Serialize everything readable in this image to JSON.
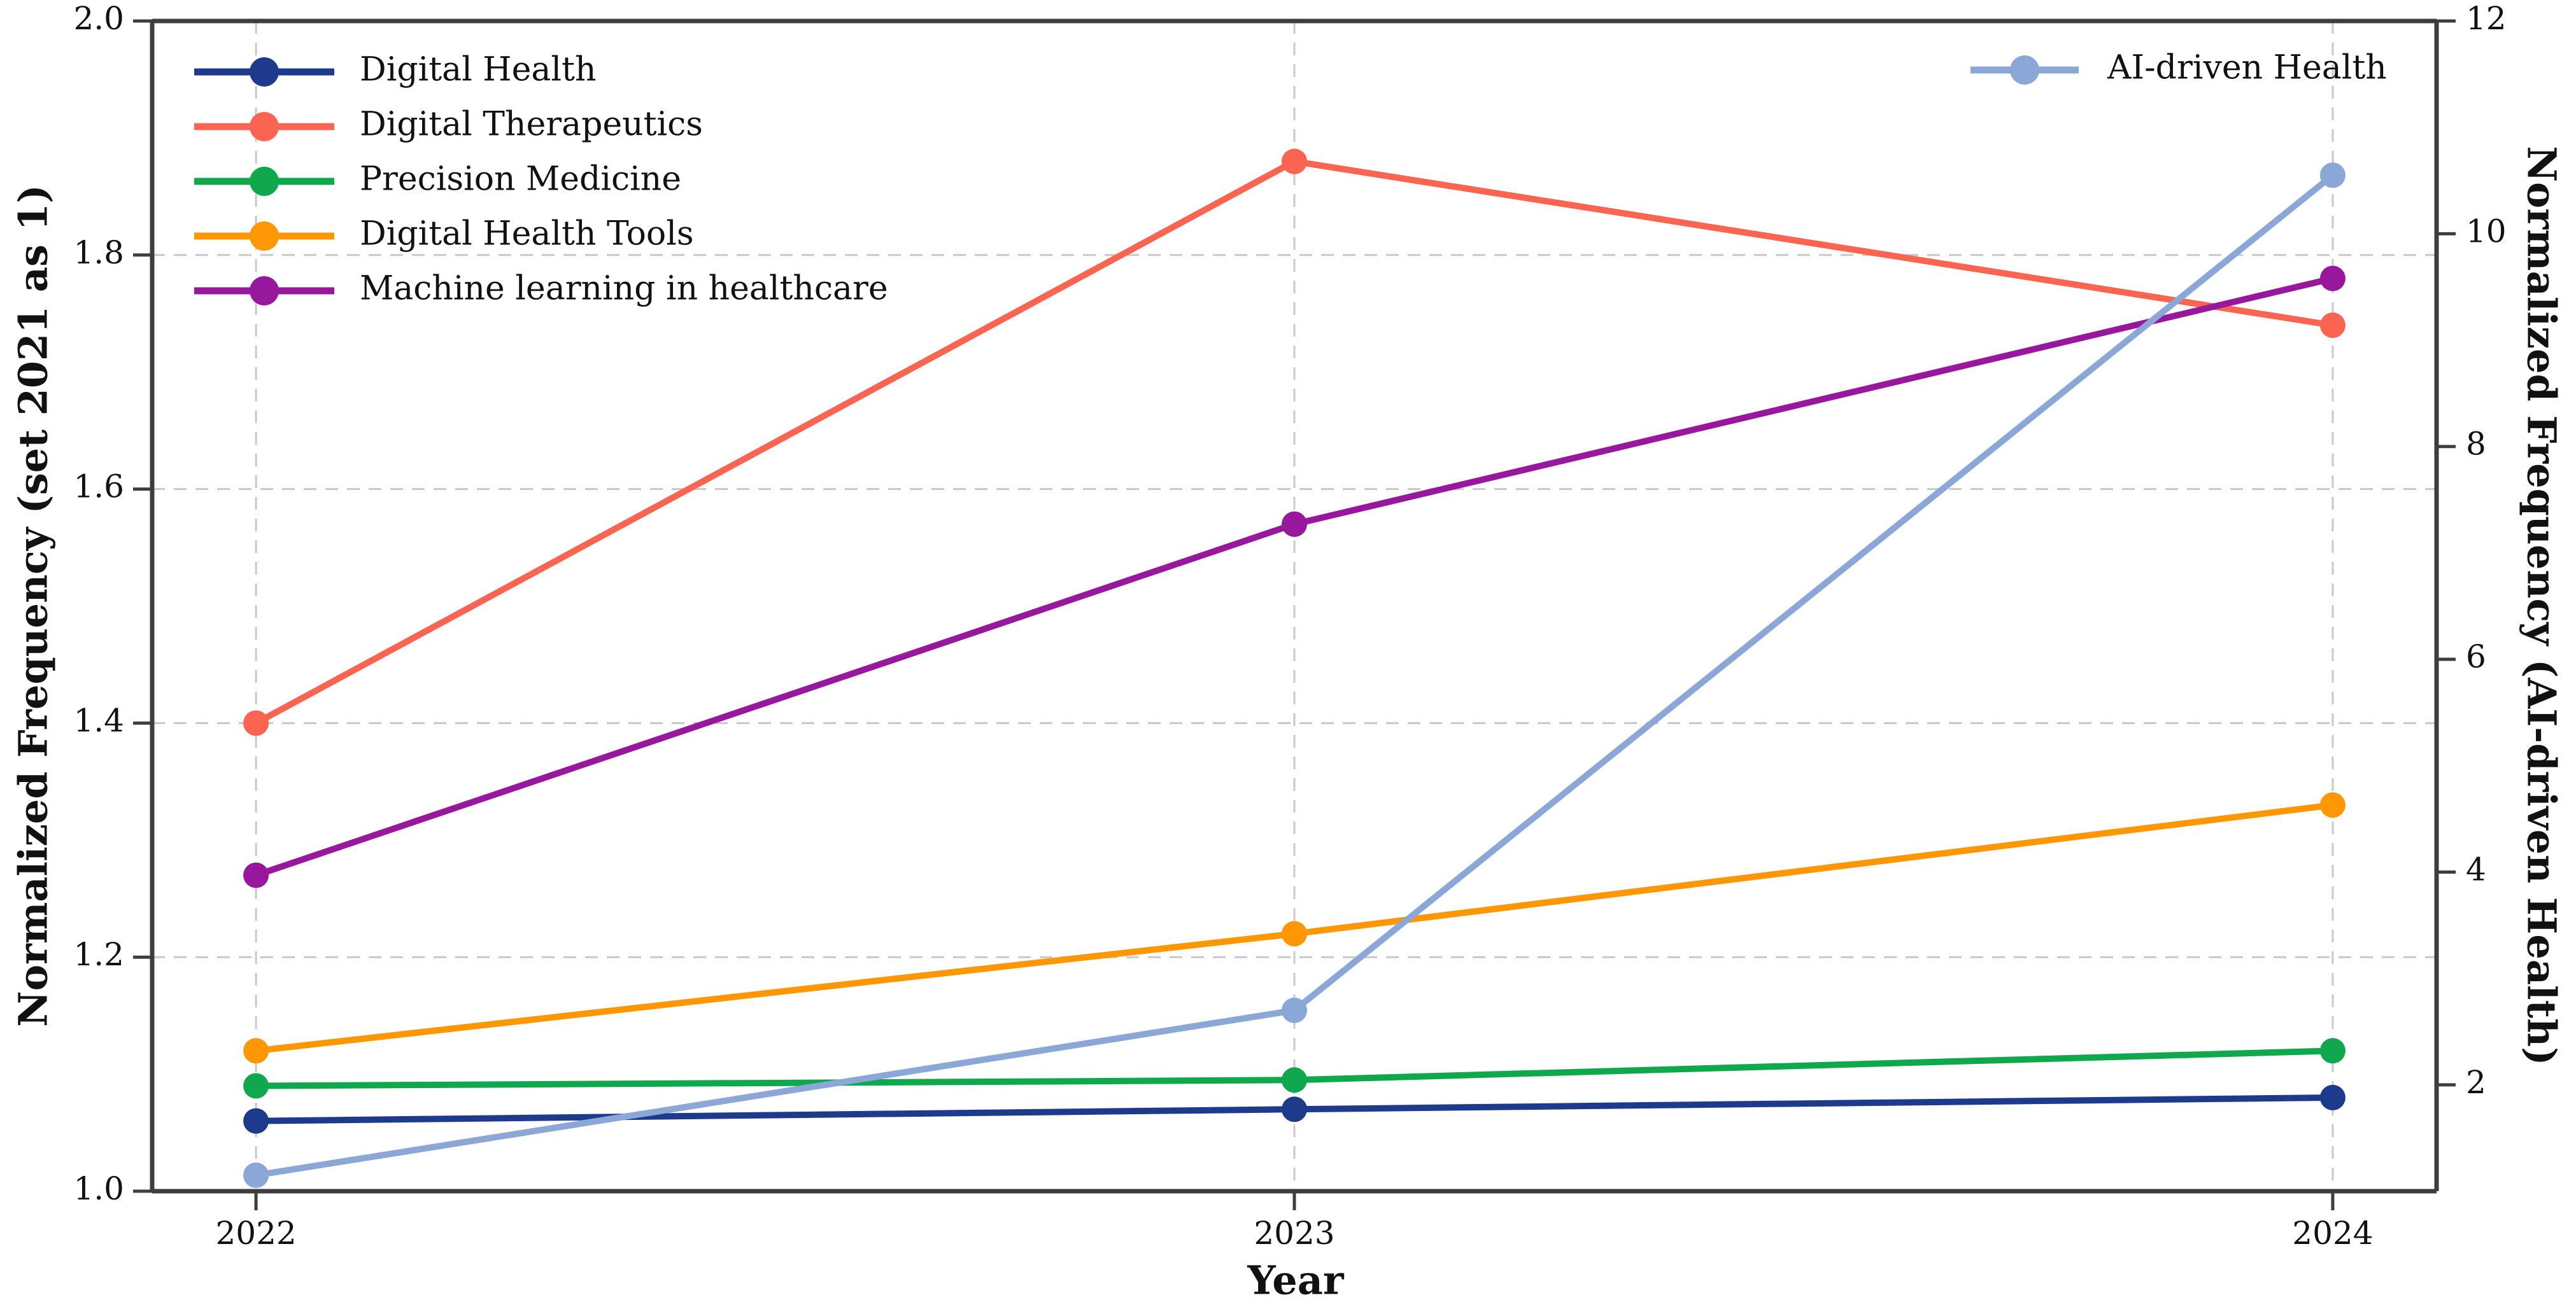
{
  "chart_data": {
    "type": "line",
    "title": "",
    "xlabel": "Year",
    "ylabel_left": "Normalized Frequency (set 2021 as 1)",
    "ylabel_right": "Normalized Frequency (AI-driven Health)",
    "x_categories": [
      "2022",
      "2023",
      "2024"
    ],
    "xlim": [
      2021.9,
      2024.1
    ],
    "ylim_left": [
      1.0,
      2.0
    ],
    "ylim_right": [
      1.0,
      12.0
    ],
    "yticks_left": [
      "1.0",
      "1.2",
      "1.4",
      "1.6",
      "1.8",
      "2.0"
    ],
    "yticks_right": [
      "2",
      "4",
      "6",
      "8",
      "10",
      "12"
    ],
    "grid": true,
    "grid_style": "dashed",
    "legend_positions": {
      "left_legend": "upper left",
      "right_legend": "upper right"
    },
    "series": [
      {
        "name": "Digital Health",
        "axis": "left",
        "color": "#1e3a8c",
        "values": [
          1.06,
          1.07,
          1.08
        ]
      },
      {
        "name": "Digital Therapeutics",
        "axis": "left",
        "color": "#fa6450",
        "values": [
          1.4,
          1.88,
          1.74
        ]
      },
      {
        "name": "Precision Medicine",
        "axis": "left",
        "color": "#10a84c",
        "values": [
          1.09,
          1.095,
          1.12
        ]
      },
      {
        "name": "Digital Health Tools",
        "axis": "left",
        "color": "#ff9603",
        "values": [
          1.12,
          1.22,
          1.33
        ]
      },
      {
        "name": "Machine learning in healthcare",
        "axis": "left",
        "color": "#98189d",
        "values": [
          1.27,
          1.57,
          1.78
        ]
      },
      {
        "name": "AI-driven Health",
        "axis": "right",
        "color": "#8aa7d7",
        "values": [
          1.15,
          2.7,
          10.55
        ]
      }
    ],
    "colors": {
      "grid": "#c8c8c8",
      "spine": "#3d3d3d",
      "tick_text": "#111111"
    }
  }
}
